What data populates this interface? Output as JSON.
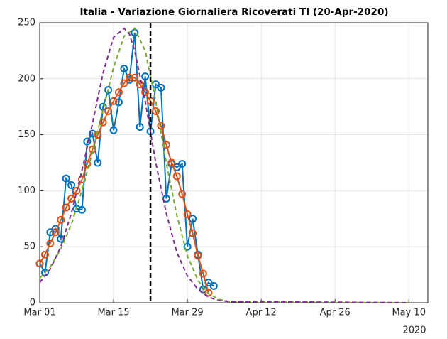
{
  "chart_data": {
    "type": "line",
    "title": "Italia - Variazione Giornaliera Ricoverati TI (20-Apr-2020)",
    "x_year_label": "2020",
    "xlim": [
      0,
      73.6
    ],
    "ylim": [
      0,
      250
    ],
    "xticks": [
      {
        "value": 0,
        "label": "Mar 01"
      },
      {
        "value": 14,
        "label": "Mar 15"
      },
      {
        "value": 28,
        "label": "Mar 29"
      },
      {
        "value": 42,
        "label": "Apr 12"
      },
      {
        "value": 56,
        "label": "Apr 26"
      },
      {
        "value": 70,
        "label": "May 10"
      }
    ],
    "yticks": [
      0,
      50,
      100,
      150,
      200,
      250
    ],
    "grid": true,
    "vline": 21,
    "series": [
      {
        "color": "#0072BD",
        "dashed": false,
        "markers": true,
        "x": [
          0,
          1,
          2,
          3,
          4,
          5,
          6,
          7,
          8,
          9,
          10,
          11,
          12,
          13,
          14,
          15,
          16,
          17,
          18,
          19,
          20,
          21,
          22,
          23,
          24,
          25,
          26,
          27,
          28,
          29,
          30,
          31,
          32,
          33
        ],
        "values": [
          35,
          27,
          63,
          66,
          57,
          111,
          105,
          84,
          83,
          144,
          151,
          125,
          175,
          190,
          154,
          179,
          209,
          199,
          241,
          157,
          202,
          153,
          195,
          192,
          93,
          124,
          121,
          124,
          50,
          75,
          43,
          12,
          18,
          15
        ]
      },
      {
        "color": "#D95319",
        "dashed": false,
        "markers": true,
        "x": [
          0,
          1,
          2,
          3,
          4,
          5,
          6,
          7,
          8,
          9,
          10,
          11,
          12,
          13,
          14,
          15,
          16,
          17,
          18,
          19,
          20,
          21,
          22,
          23,
          24,
          25,
          26,
          27,
          28,
          29,
          30,
          31,
          32
        ],
        "values": [
          35,
          43,
          53,
          63,
          74,
          85,
          93,
          100,
          110,
          124,
          137,
          150,
          161,
          171,
          180,
          188,
          196,
          201,
          201,
          195,
          188,
          180,
          171,
          158,
          141,
          125,
          113,
          97,
          79,
          62,
          42,
          26,
          9
        ]
      },
      {
        "color": "#77AC30",
        "dashed": true,
        "markers": false,
        "x": [
          0,
          2,
          4,
          6,
          8,
          10,
          12,
          14,
          16,
          18,
          20,
          22,
          24,
          26,
          28,
          30,
          32,
          34,
          36,
          70
        ],
        "values": [
          22,
          32,
          48,
          70,
          100,
          135,
          172,
          210,
          238,
          245,
          225,
          180,
          125,
          78,
          42,
          20,
          8,
          3,
          1,
          0
        ]
      },
      {
        "color": "#7E2F8E",
        "dashed": true,
        "markers": false,
        "x": [
          0,
          2,
          4,
          6,
          8,
          10,
          12,
          14,
          16,
          17,
          18,
          20,
          22,
          24,
          26,
          28,
          30,
          32,
          34,
          36,
          70
        ],
        "values": [
          18,
          30,
          50,
          80,
          118,
          160,
          205,
          237,
          245,
          240,
          225,
          180,
          125,
          80,
          45,
          24,
          12,
          5,
          2,
          1,
          0
        ]
      }
    ]
  }
}
